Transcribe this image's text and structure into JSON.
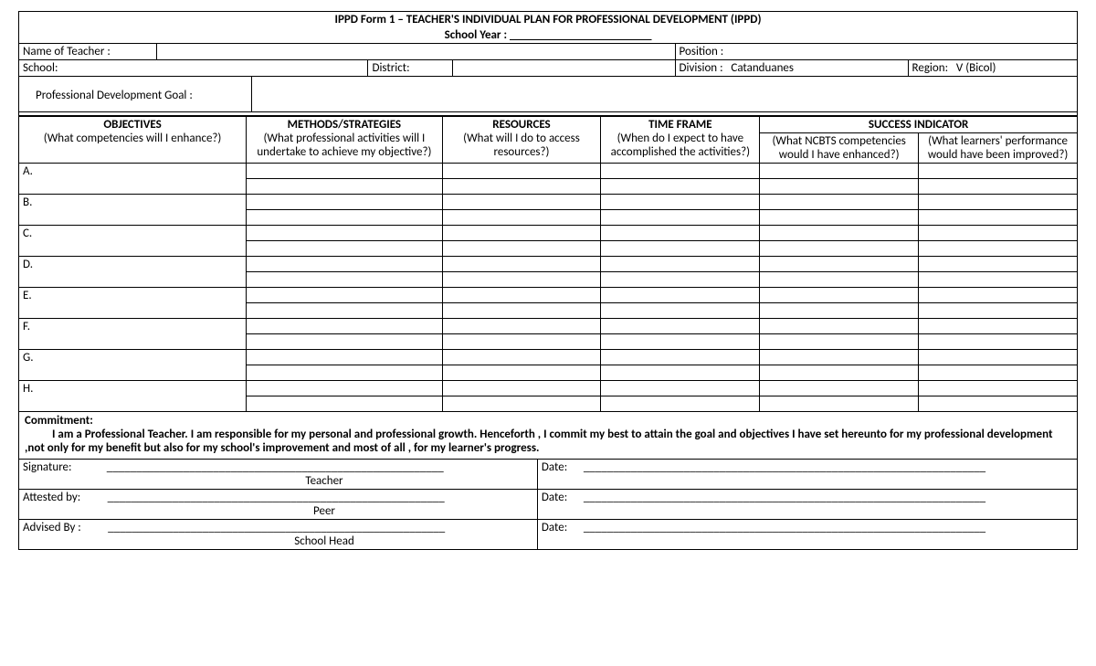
{
  "title_line1": "IPPD Form 1 – TEACHER'S INDIVIDUAL PLAN FOR PROFESSIONAL DEVELOPMENT (IPPD)",
  "title_line2_label": "School Year :",
  "title_line2_blank": "________________________",
  "info": {
    "name_label": "Name of Teacher :",
    "name_value": "",
    "position_label": "Position :",
    "position_value": "",
    "school_label": "School:",
    "school_value": "",
    "district_label": "District:",
    "district_value": "",
    "division_label": "Division :",
    "division_value": "Catanduanes",
    "region_label": "Region:",
    "region_value": "V (Bicol)"
  },
  "pd_goal_label": "Professional Development Goal :",
  "columns": {
    "objectives": {
      "title": "OBJECTIVES",
      "sub": "(What competencies will I enhance?)"
    },
    "methods": {
      "title": "METHODS/STRATEGIES",
      "sub": "(What professional activities will I undertake to achieve my objective?)"
    },
    "resources": {
      "title": "RESOURCES",
      "sub": "(What will I do  to access resources?)"
    },
    "timeframe": {
      "title": "TIME FRAME",
      "sub": "(When do I expect to have accomplished the activities?)"
    },
    "success": {
      "title": "SUCCESS INDICATOR",
      "sub1": "(What NCBTS competencies would I have enhanced?)",
      "sub2": "(What learners' performance would have been improved?)"
    }
  },
  "row_labels": [
    "A.",
    "B.",
    "C.",
    "D.",
    "E.",
    "F.",
    "G.",
    "H."
  ],
  "commitment_label": "Commitment:",
  "commitment_text": "I am a Professional Teacher. I am responsible for my personal and professional growth. Henceforth , I commit my best to attain  the goal and objectives I have set hereunto for my professional development ,not only for my benefit  but also for my school's improvement and most of all , for my learner's progress.",
  "signature_label": "Signature:",
  "attested_label": "Attested by:",
  "advised_label": "Advised By :",
  "date_label": "Date:",
  "role_teacher": "Teacher",
  "role_peer": "Peer",
  "role_head": "School Head",
  "layout": {
    "col_widths_info": [
      "13%",
      "20%",
      "8%",
      "21%",
      "9.5%",
      "12.5%",
      "7%",
      "9%"
    ],
    "main_table_widths": [
      "21.5%",
      "18.5%",
      "15%",
      "15%",
      "15%",
      "15%"
    ]
  }
}
